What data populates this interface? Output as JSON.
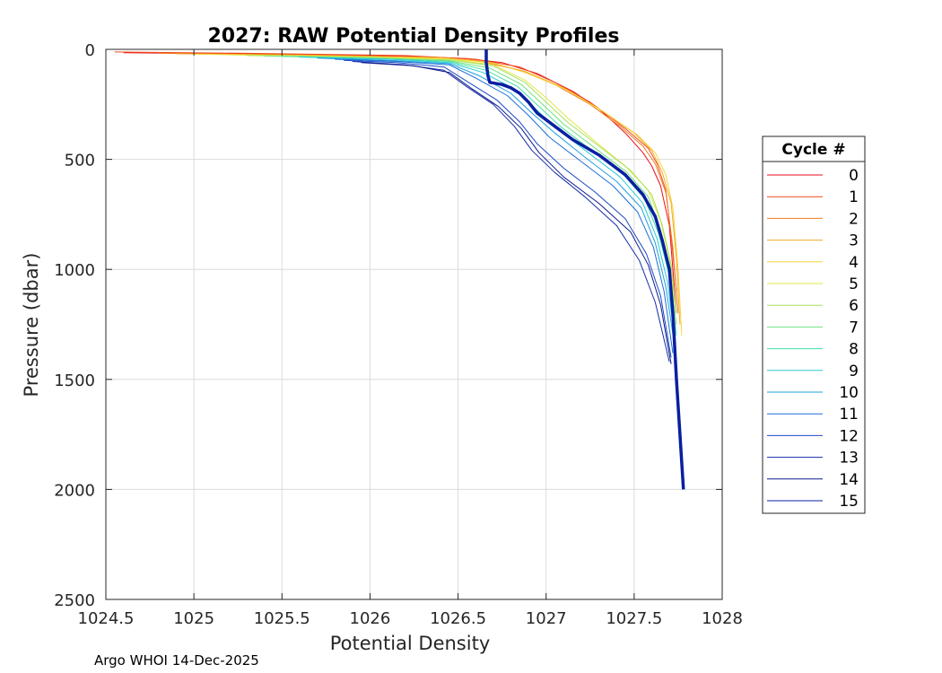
{
  "chart_data": {
    "type": "line",
    "title": "2027: RAW Potential Density Profiles",
    "xlabel": "Potential Density",
    "ylabel": "Pressure (dbar)",
    "xlim": [
      1024.5,
      1028
    ],
    "ylim": [
      0,
      2500
    ],
    "y_reversed": true,
    "grid": true,
    "xticks": [
      1024.5,
      1025,
      1025.5,
      1026,
      1026.5,
      1027,
      1027.5,
      1028
    ],
    "xtick_labels": [
      "1024.5",
      "1025",
      "1025.5",
      "1026",
      "1026.5",
      "1027",
      "1027.5",
      "1028"
    ],
    "yticks": [
      0,
      500,
      1000,
      1500,
      2000,
      2500
    ],
    "ytick_labels": [
      "0",
      "500",
      "1000",
      "1500",
      "2000",
      "2500"
    ],
    "legend": {
      "title": "Cycle #",
      "position": "right",
      "entries": [
        "0",
        "1",
        "2",
        "3",
        "4",
        "5",
        "6",
        "7",
        "8",
        "9",
        "10",
        "11",
        "12",
        "13",
        "14",
        "15"
      ]
    },
    "highlight_series": 15,
    "series": [
      {
        "name": "0",
        "color": "#e8111c",
        "points": [
          [
            1024.6,
            15
          ],
          [
            1025.5,
            22
          ],
          [
            1026.2,
            30
          ],
          [
            1026.55,
            42
          ],
          [
            1026.75,
            60
          ],
          [
            1026.95,
            110
          ],
          [
            1027.15,
            190
          ],
          [
            1027.3,
            270
          ],
          [
            1027.45,
            380
          ],
          [
            1027.55,
            470
          ],
          [
            1027.6,
            530
          ],
          [
            1027.65,
            620
          ],
          [
            1027.7,
            800
          ],
          [
            1027.72,
            1000
          ],
          [
            1027.74,
            1200
          ]
        ]
      },
      {
        "name": "1",
        "color": "#ef4a1e",
        "points": [
          [
            1024.55,
            12
          ],
          [
            1025.3,
            18
          ],
          [
            1026.2,
            28
          ],
          [
            1026.6,
            45
          ],
          [
            1026.85,
            80
          ],
          [
            1027.05,
            150
          ],
          [
            1027.25,
            240
          ],
          [
            1027.45,
            360
          ],
          [
            1027.58,
            450
          ],
          [
            1027.63,
            520
          ],
          [
            1027.68,
            640
          ],
          [
            1027.71,
            850
          ],
          [
            1027.74,
            1100
          ]
        ]
      },
      {
        "name": "2",
        "color": "#f27b21",
        "points": [
          [
            1024.8,
            18
          ],
          [
            1025.6,
            25
          ],
          [
            1026.3,
            35
          ],
          [
            1026.6,
            50
          ],
          [
            1026.85,
            95
          ],
          [
            1027.05,
            160
          ],
          [
            1027.25,
            250
          ],
          [
            1027.42,
            350
          ],
          [
            1027.55,
            440
          ],
          [
            1027.62,
            520
          ],
          [
            1027.68,
            650
          ],
          [
            1027.72,
            900
          ],
          [
            1027.75,
            1200
          ]
        ]
      },
      {
        "name": "3",
        "color": "#f5a726",
        "points": [
          [
            1024.9,
            20
          ],
          [
            1025.7,
            28
          ],
          [
            1026.4,
            38
          ],
          [
            1026.65,
            55
          ],
          [
            1026.88,
            100
          ],
          [
            1027.1,
            175
          ],
          [
            1027.3,
            270
          ],
          [
            1027.5,
            380
          ],
          [
            1027.6,
            460
          ],
          [
            1027.66,
            560
          ],
          [
            1027.71,
            700
          ],
          [
            1027.74,
            950
          ],
          [
            1027.76,
            1250
          ]
        ]
      },
      {
        "name": "4",
        "color": "#f7d43a",
        "points": [
          [
            1025.0,
            22
          ],
          [
            1025.8,
            30
          ],
          [
            1026.45,
            42
          ],
          [
            1026.7,
            62
          ],
          [
            1026.9,
            110
          ],
          [
            1027.12,
            185
          ],
          [
            1027.32,
            280
          ],
          [
            1027.52,
            390
          ],
          [
            1027.62,
            470
          ],
          [
            1027.68,
            570
          ],
          [
            1027.72,
            720
          ],
          [
            1027.75,
            1000
          ],
          [
            1027.77,
            1300
          ]
        ]
      },
      {
        "name": "5",
        "color": "#dfe84a",
        "points": [
          [
            1025.2,
            25
          ],
          [
            1025.9,
            33
          ],
          [
            1026.45,
            45
          ],
          [
            1026.7,
            70
          ],
          [
            1026.88,
            140
          ],
          [
            1027.0,
            220
          ],
          [
            1027.12,
            310
          ],
          [
            1027.28,
            420
          ],
          [
            1027.45,
            530
          ],
          [
            1027.58,
            640
          ],
          [
            1027.65,
            780
          ],
          [
            1027.7,
            950
          ],
          [
            1027.73,
            1150
          ]
        ]
      },
      {
        "name": "6",
        "color": "#a7e25a",
        "points": [
          [
            1025.3,
            28
          ],
          [
            1025.95,
            36
          ],
          [
            1026.45,
            48
          ],
          [
            1026.7,
            75
          ],
          [
            1026.88,
            150
          ],
          [
            1027.0,
            240
          ],
          [
            1027.12,
            330
          ],
          [
            1027.3,
            440
          ],
          [
            1027.48,
            550
          ],
          [
            1027.6,
            660
          ],
          [
            1027.66,
            800
          ],
          [
            1027.71,
            980
          ],
          [
            1027.74,
            1200
          ]
        ]
      },
      {
        "name": "7",
        "color": "#6ee27b",
        "points": [
          [
            1025.4,
            30
          ],
          [
            1026.0,
            40
          ],
          [
            1026.45,
            52
          ],
          [
            1026.68,
            85
          ],
          [
            1026.86,
            160
          ],
          [
            1026.98,
            250
          ],
          [
            1027.1,
            340
          ],
          [
            1027.28,
            450
          ],
          [
            1027.46,
            560
          ],
          [
            1027.58,
            670
          ],
          [
            1027.65,
            820
          ],
          [
            1027.7,
            1000
          ],
          [
            1027.74,
            1250
          ]
        ]
      },
      {
        "name": "8",
        "color": "#46dfa6",
        "points": [
          [
            1025.5,
            32
          ],
          [
            1026.05,
            42
          ],
          [
            1026.45,
            55
          ],
          [
            1026.66,
            95
          ],
          [
            1026.84,
            170
          ],
          [
            1026.96,
            260
          ],
          [
            1027.08,
            350
          ],
          [
            1027.26,
            460
          ],
          [
            1027.44,
            570
          ],
          [
            1027.56,
            680
          ],
          [
            1027.64,
            840
          ],
          [
            1027.7,
            1030
          ],
          [
            1027.74,
            1300
          ]
        ]
      },
      {
        "name": "9",
        "color": "#2bcbd4",
        "points": [
          [
            1025.6,
            35
          ],
          [
            1026.1,
            45
          ],
          [
            1026.45,
            60
          ],
          [
            1026.64,
            105
          ],
          [
            1026.82,
            180
          ],
          [
            1026.94,
            270
          ],
          [
            1027.06,
            360
          ],
          [
            1027.24,
            470
          ],
          [
            1027.42,
            580
          ],
          [
            1027.55,
            700
          ],
          [
            1027.63,
            860
          ],
          [
            1027.69,
            1060
          ],
          [
            1027.73,
            1320
          ]
        ]
      },
      {
        "name": "10",
        "color": "#1e9fe0",
        "points": [
          [
            1025.7,
            40
          ],
          [
            1026.1,
            50
          ],
          [
            1026.45,
            65
          ],
          [
            1026.62,
            120
          ],
          [
            1026.8,
            200
          ],
          [
            1026.92,
            290
          ],
          [
            1027.05,
            380
          ],
          [
            1027.22,
            490
          ],
          [
            1027.4,
            600
          ],
          [
            1027.54,
            720
          ],
          [
            1027.62,
            880
          ],
          [
            1027.68,
            1080
          ],
          [
            1027.73,
            1350
          ]
        ]
      },
      {
        "name": "11",
        "color": "#1a6fd6",
        "points": [
          [
            1025.8,
            45
          ],
          [
            1026.15,
            55
          ],
          [
            1026.45,
            70
          ],
          [
            1026.6,
            130
          ],
          [
            1026.78,
            210
          ],
          [
            1026.9,
            300
          ],
          [
            1027.02,
            400
          ],
          [
            1027.2,
            510
          ],
          [
            1027.38,
            620
          ],
          [
            1027.52,
            740
          ],
          [
            1027.61,
            900
          ],
          [
            1027.67,
            1100
          ],
          [
            1027.72,
            1380
          ]
        ]
      },
      {
        "name": "12",
        "color": "#1848c4",
        "points": [
          [
            1025.85,
            50
          ],
          [
            1026.15,
            60
          ],
          [
            1026.42,
            80
          ],
          [
            1026.56,
            150
          ],
          [
            1026.72,
            230
          ],
          [
            1026.85,
            330
          ],
          [
            1026.95,
            430
          ],
          [
            1027.1,
            540
          ],
          [
            1027.28,
            650
          ],
          [
            1027.45,
            770
          ],
          [
            1027.57,
            930
          ],
          [
            1027.65,
            1120
          ],
          [
            1027.71,
            1400
          ]
        ]
      },
      {
        "name": "13",
        "color": "#142ca8",
        "points": [
          [
            1025.9,
            55
          ],
          [
            1026.2,
            70
          ],
          [
            1026.42,
            95
          ],
          [
            1026.55,
            170
          ],
          [
            1026.7,
            250
          ],
          [
            1026.82,
            350
          ],
          [
            1026.92,
            460
          ],
          [
            1027.05,
            560
          ],
          [
            1027.22,
            670
          ],
          [
            1027.4,
            800
          ],
          [
            1027.53,
            960
          ],
          [
            1027.62,
            1150
          ],
          [
            1027.7,
            1420
          ]
        ]
      },
      {
        "name": "14",
        "color": "#0e1a8c",
        "points": [
          [
            1025.95,
            60
          ],
          [
            1026.25,
            75
          ],
          [
            1026.45,
            105
          ],
          [
            1026.58,
            180
          ],
          [
            1026.73,
            260
          ],
          [
            1026.86,
            360
          ],
          [
            1026.96,
            470
          ],
          [
            1027.1,
            580
          ],
          [
            1027.3,
            700
          ],
          [
            1027.48,
            830
          ],
          [
            1027.58,
            980
          ],
          [
            1027.65,
            1160
          ],
          [
            1027.71,
            1430
          ]
        ]
      },
      {
        "name": "15",
        "color": "#0a1fa0",
        "points": [
          [
            1026.66,
            0
          ],
          [
            1026.66,
            60
          ],
          [
            1026.67,
            120
          ],
          [
            1026.68,
            150
          ],
          [
            1026.75,
            160
          ],
          [
            1026.8,
            175
          ],
          [
            1026.85,
            200
          ],
          [
            1026.9,
            240
          ],
          [
            1026.95,
            290
          ],
          [
            1027.05,
            350
          ],
          [
            1027.15,
            410
          ],
          [
            1027.3,
            480
          ],
          [
            1027.45,
            570
          ],
          [
            1027.55,
            660
          ],
          [
            1027.62,
            760
          ],
          [
            1027.66,
            870
          ],
          [
            1027.7,
            1000
          ],
          [
            1027.72,
            1200
          ],
          [
            1027.74,
            1500
          ],
          [
            1027.76,
            1750
          ],
          [
            1027.78,
            2000
          ]
        ]
      }
    ],
    "annotations": [
      "Argo WHOI 14-Dec-2025"
    ]
  }
}
